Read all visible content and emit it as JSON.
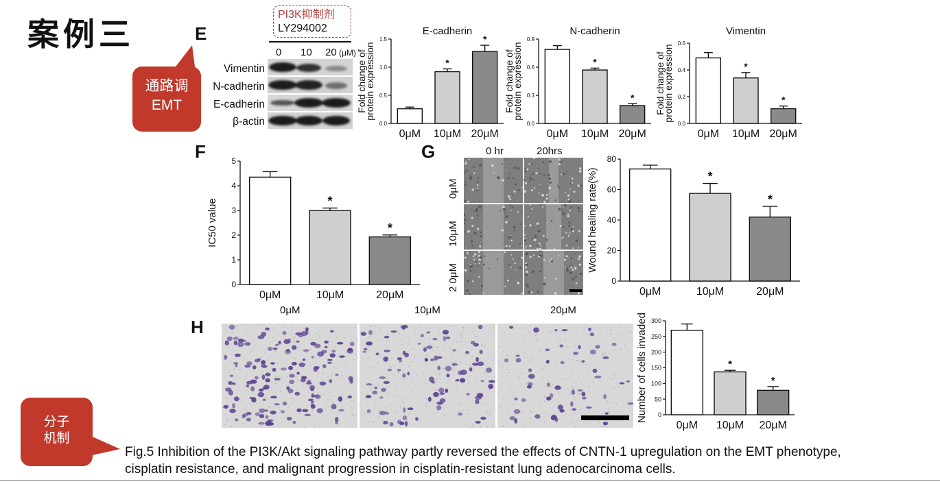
{
  "header": {
    "title_cn": "案例三"
  },
  "callouts": {
    "emt": "通路调\nEMT",
    "molecular": "分子\n机制"
  },
  "panel_letters": {
    "e": "E",
    "f": "F",
    "g": "G",
    "h": "H"
  },
  "inhibitor": {
    "line1": "PI3K抑制剂",
    "line2": "LY294002"
  },
  "blot": {
    "doses": [
      "0",
      "10",
      "20"
    ],
    "dose_unit": "(μM)",
    "proteins": [
      "Vimentin",
      "N-cadherin",
      "E-cadherin",
      "β-actin"
    ]
  },
  "wound_images": {
    "time_labels": [
      "0 hr",
      "20hrs"
    ],
    "row_labels": [
      "0μM",
      "10μM",
      "2 0μM"
    ]
  },
  "invasion_images": {
    "labels": [
      "0μM",
      "10μM",
      "20μM"
    ]
  },
  "caption": {
    "line1": "Fig.5 Inhibition of the PI3K/Akt signaling pathway partly reversed the effects of CNTN-1 upregulation on the EMT phenotype,",
    "line2": "cisplatin resistance, and malignant progression in cisplatin-resistant lung adenocarcinoma cells."
  },
  "colors": {
    "callout": "#c0392b",
    "bar_0": "#ffffff",
    "bar_10": "#cfcfcf",
    "bar_20": "#8a8a8a",
    "stain": "#5b3f8f"
  },
  "chart_data": [
    {
      "id": "ecad",
      "type": "bar",
      "title": "E-cadherin",
      "ylabel": "Fold change of protein expression",
      "categories": [
        "0μM",
        "10μM",
        "20μM"
      ],
      "values": [
        0.26,
        0.92,
        1.28
      ],
      "errors": [
        0.03,
        0.05,
        0.11
      ],
      "significance": [
        "",
        "*",
        "*"
      ],
      "ylim": [
        0,
        1.5
      ],
      "yticks": [
        "0.0",
        "0.5",
        "1.0",
        "1.5"
      ]
    },
    {
      "id": "ncad",
      "type": "bar",
      "title": "N-cadherin",
      "ylabel": "Fold change of protein expression",
      "categories": [
        "0μM",
        "10μM",
        "20μM"
      ],
      "values": [
        0.79,
        0.57,
        0.19
      ],
      "errors": [
        0.04,
        0.02,
        0.02
      ],
      "significance": [
        "",
        "*",
        "*"
      ],
      "ylim": [
        0,
        0.9
      ],
      "yticks": [
        "0.0",
        "0.3",
        "0.6",
        "0.9"
      ]
    },
    {
      "id": "vim",
      "type": "bar",
      "title": "Vimentin",
      "ylabel": "Fold change of protein expression",
      "categories": [
        "0μM",
        "10μM",
        "20μM"
      ],
      "values": [
        0.49,
        0.34,
        0.11
      ],
      "errors": [
        0.04,
        0.04,
        0.02
      ],
      "significance": [
        "",
        "*",
        "*"
      ],
      "ylim": [
        0,
        0.6
      ],
      "yticks": [
        "0.0",
        "0.2",
        "0.4",
        "0.6"
      ]
    },
    {
      "id": "ic50",
      "type": "bar",
      "title": "",
      "ylabel": "IC50 value",
      "categories": [
        "0μM",
        "10μM",
        "20μM"
      ],
      "values": [
        4.35,
        3.0,
        1.93
      ],
      "errors": [
        0.22,
        0.1,
        0.08
      ],
      "significance": [
        "",
        "*",
        "*"
      ],
      "ylim": [
        0,
        5
      ],
      "yticks": [
        "0",
        "1",
        "2",
        "3",
        "4",
        "5"
      ]
    },
    {
      "id": "wound",
      "type": "bar",
      "title": "",
      "ylabel": "Wound healing rate(%)",
      "categories": [
        "0μM",
        "10μM",
        "20μM"
      ],
      "values": [
        73.5,
        57.5,
        42.0
      ],
      "errors": [
        2.5,
        6.5,
        7.0
      ],
      "significance": [
        "",
        "*",
        "*"
      ],
      "ylim": [
        0,
        80
      ],
      "yticks": [
        "0",
        "20",
        "40",
        "60",
        "80"
      ]
    },
    {
      "id": "invade",
      "type": "bar",
      "title": "",
      "ylabel": "Number of cells invaded",
      "categories": [
        "0μM",
        "10μM",
        "20μM"
      ],
      "values": [
        270,
        137,
        78
      ],
      "errors": [
        20,
        5,
        12
      ],
      "significance": [
        "",
        "*",
        "*"
      ],
      "ylim": [
        0,
        300
      ],
      "yticks": [
        "0",
        "50",
        "100",
        "150",
        "200",
        "250",
        "300"
      ]
    }
  ]
}
